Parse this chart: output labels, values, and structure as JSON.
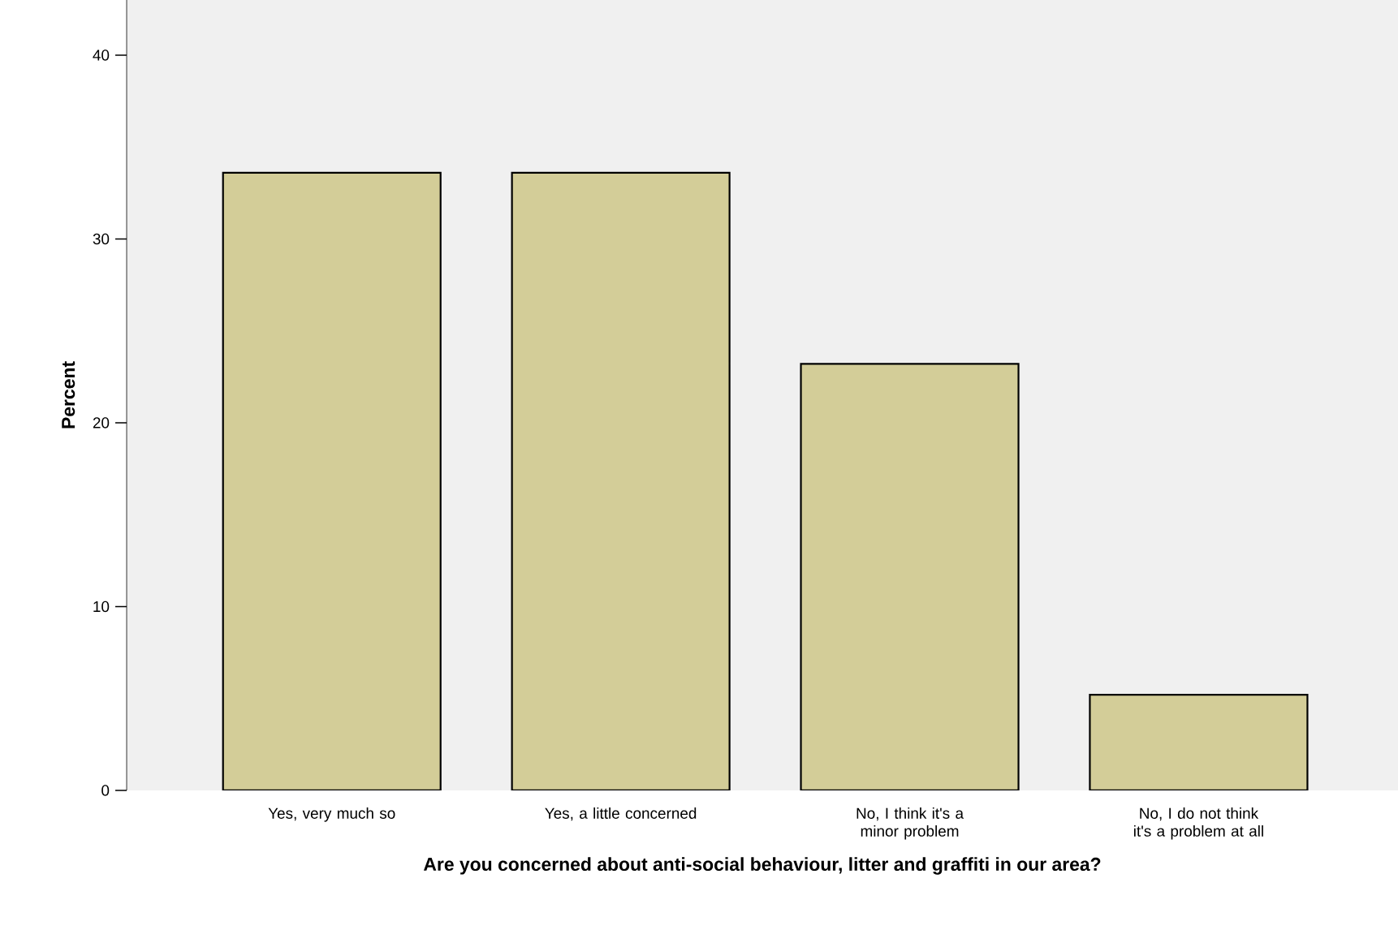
{
  "chart_data": {
    "type": "bar",
    "xlabel": "Are you concerned about anti-social behaviour, litter and graffiti in our area?",
    "ylabel": "Percent",
    "categories": [
      "Yes, very much so",
      "Yes, a little concerned",
      "No, I think it's a minor problem",
      "No, I do not think it's a problem at all"
    ],
    "values": [
      33.6,
      33.6,
      23.2,
      5.2
    ],
    "color": "#d3cd98",
    "ylim": [
      0,
      43
    ],
    "yticks": [
      0,
      10,
      20,
      30,
      40
    ],
    "grid": false
  }
}
